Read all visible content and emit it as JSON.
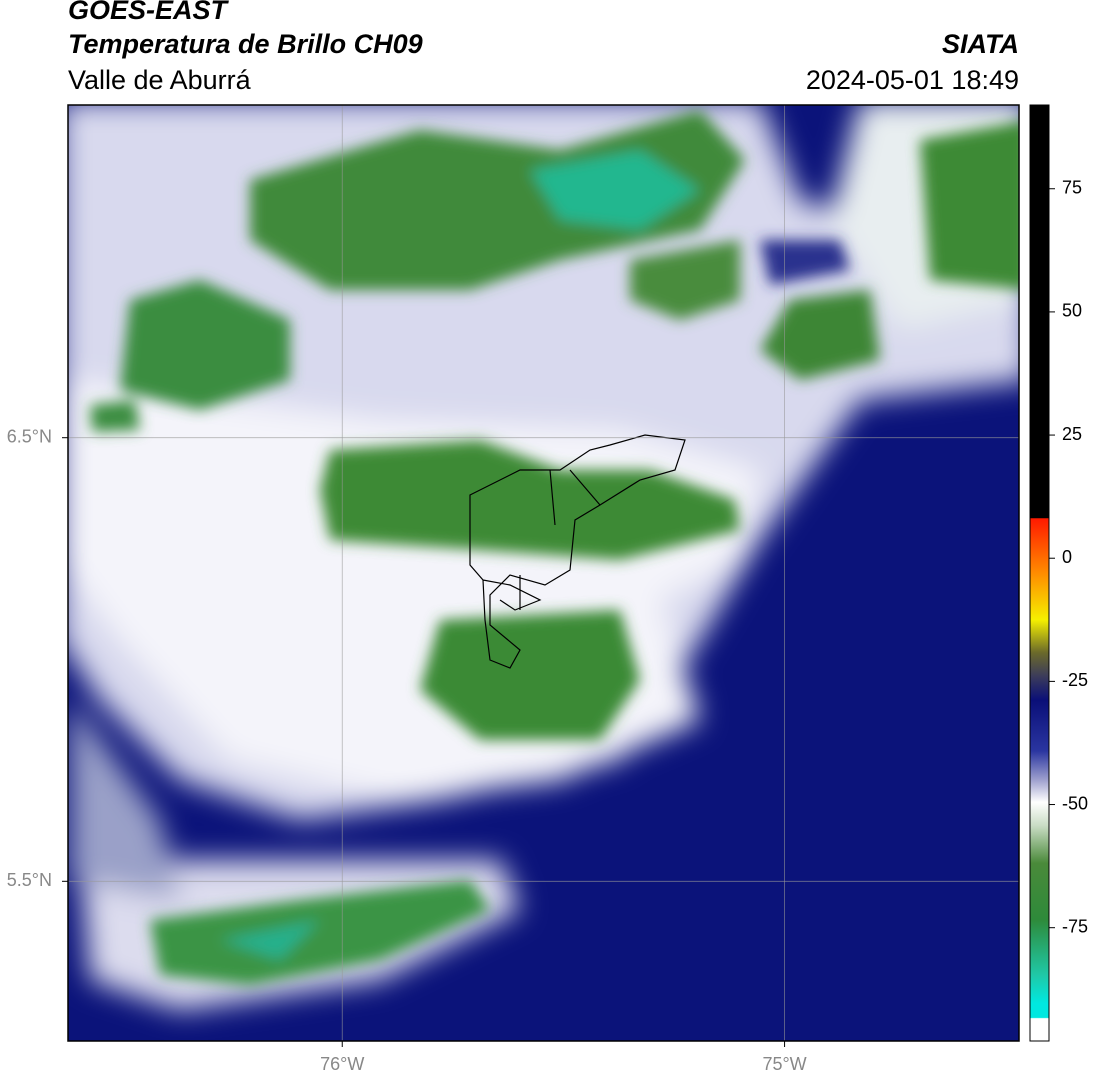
{
  "header": {
    "title": "GOES-EAST",
    "subtitle": "Temperatura de Brillo CH09",
    "region": "Valle de Aburrá",
    "source": "SIATA",
    "timestamp": "2024-05-01 18:49"
  },
  "map": {
    "xlim": [
      -76.62,
      -74.47
    ],
    "ylim": [
      5.14,
      7.25
    ],
    "xticks": [
      {
        "value": -76,
        "label": "76°W"
      },
      {
        "value": -75,
        "label": "75°W"
      }
    ],
    "yticks": [
      {
        "value": 6.5,
        "label": "6.5°N"
      },
      {
        "value": 5.5,
        "label": "5.5°N"
      }
    ]
  },
  "colorbar": {
    "range": [
      -98,
      92
    ],
    "ticks": [
      75,
      50,
      25,
      0,
      -25,
      -50,
      -75
    ]
  }
}
